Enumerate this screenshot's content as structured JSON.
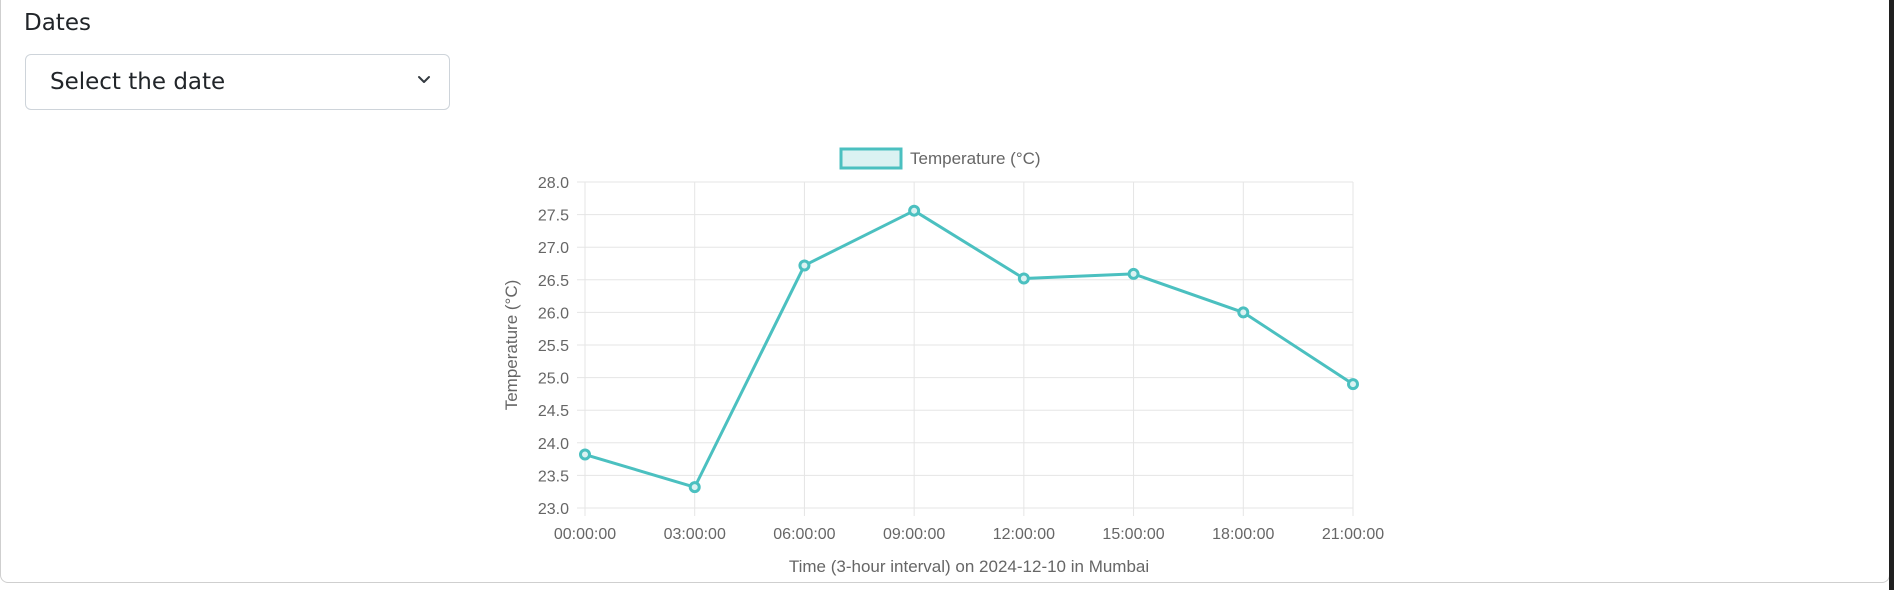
{
  "form": {
    "dates_label": "Dates",
    "date_select": {
      "selected": "Select the date",
      "icon": "chevron-down-icon"
    }
  },
  "chart_data": {
    "type": "line",
    "categories": [
      "00:00:00",
      "03:00:00",
      "06:00:00",
      "09:00:00",
      "12:00:00",
      "15:00:00",
      "18:00:00",
      "21:00:00"
    ],
    "series": [
      {
        "name": "Temperature (°C)",
        "values": [
          23.82,
          23.32,
          26.72,
          27.56,
          26.52,
          26.59,
          26.0,
          24.9
        ]
      }
    ],
    "xlabel": "Time (3-hour interval) on 2024-12-10 in Mumbai",
    "ylabel": "Temperature (°C)",
    "ylim": [
      23.0,
      28.0
    ],
    "yticks": [
      "28.0",
      "27.5",
      "27.0",
      "26.5",
      "26.0",
      "25.5",
      "25.0",
      "24.5",
      "24.0",
      "23.5",
      "23.0"
    ],
    "grid": true,
    "legend": "top-center",
    "colors": {
      "line": "#4bc0c0",
      "fill": "#dbf2f2",
      "grid": "#e5e5e5"
    }
  }
}
